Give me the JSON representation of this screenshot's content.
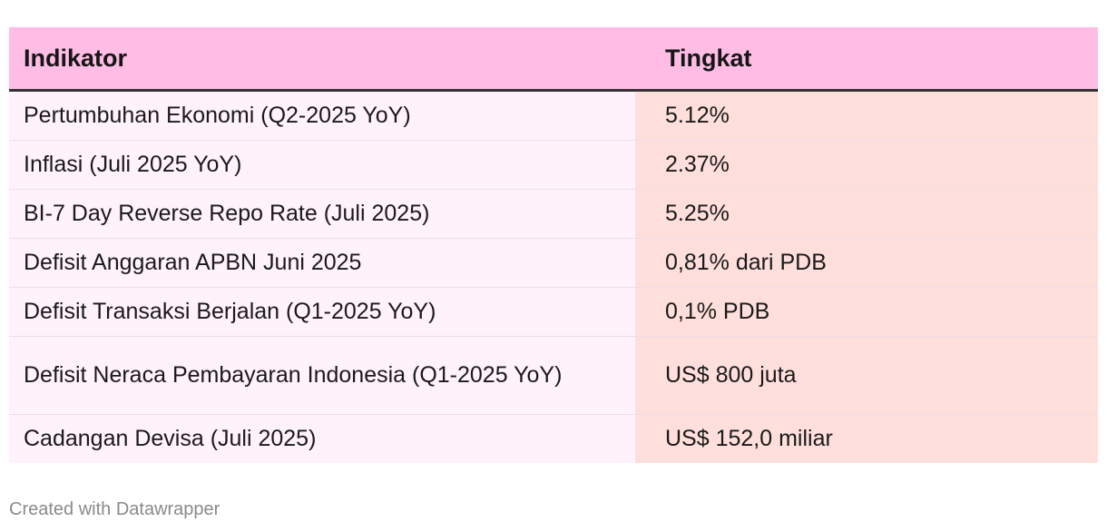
{
  "chart_data": {
    "type": "table",
    "columns": [
      "Indikator",
      "Tingkat"
    ],
    "rows": [
      {
        "indicator": "Pertumbuhan Ekonomi (Q2-2025 YoY)",
        "value": "5.12%"
      },
      {
        "indicator": "Inflasi (Juli 2025 YoY)",
        "value": "2.37%"
      },
      {
        "indicator": "BI-7 Day Reverse Repo Rate (Juli 2025)",
        "value": "5.25%"
      },
      {
        "indicator": "Defisit Anggaran APBN Juni 2025",
        "value": "0,81% dari PDB"
      },
      {
        "indicator": "Defisit Transaksi Berjalan (Q1-2025 YoY)",
        "value": "0,1% PDB"
      },
      {
        "indicator": "Defisit Neraca Pembayaran Indonesia (Q1-2025 YoY)",
        "value": "US$ 800 juta"
      },
      {
        "indicator": "Cadangan Devisa (Juli 2025)",
        "value": "US$ 152,0 miliar"
      }
    ]
  },
  "footer": "Created with Datawrapper",
  "colors": {
    "header_bg": "#ffbde6",
    "indicator_bg": "#fff2fb",
    "value_bg": "#ffdfdc"
  }
}
